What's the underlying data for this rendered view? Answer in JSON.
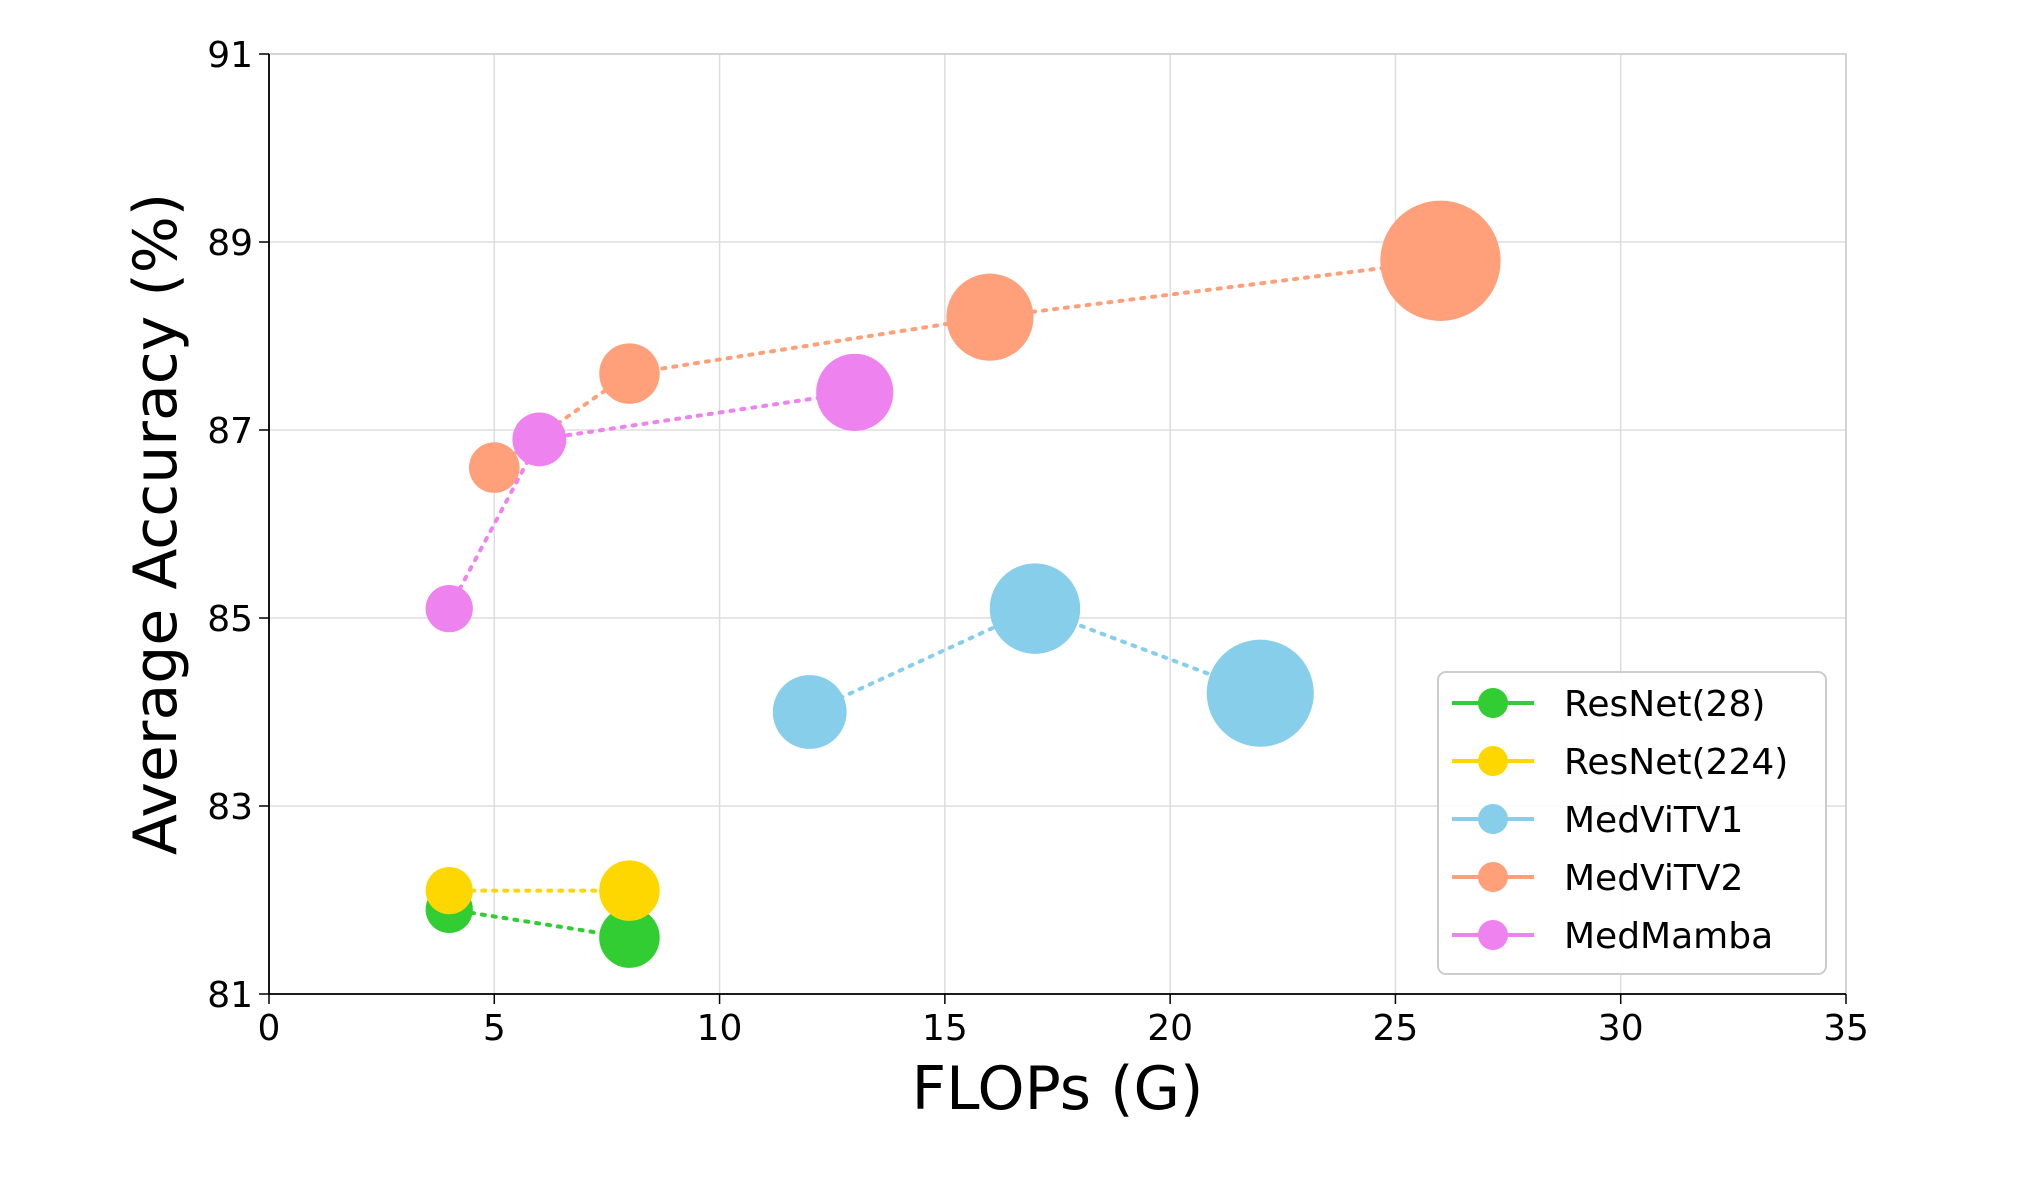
{
  "chart_data": {
    "type": "scatter",
    "xlabel": "FLOPs (G)",
    "ylabel": "Average Accuracy (%)",
    "xlim": [
      0,
      35
    ],
    "ylim": [
      81,
      91
    ],
    "xticks": [
      0,
      5,
      10,
      15,
      20,
      25,
      30,
      35
    ],
    "yticks": [
      81,
      83,
      85,
      87,
      89,
      91
    ],
    "xtick_labels": [
      "0",
      "5",
      "10",
      "15",
      "20",
      "25",
      "30",
      "35"
    ],
    "ytick_labels": [
      "81",
      "83",
      "85",
      "87",
      "89",
      "91"
    ],
    "grid": true,
    "legend_position": "bottom-right",
    "connector_style": "dotted",
    "series": [
      {
        "name": "ResNet(28)",
        "color": "#32CD32",
        "x": [
          4,
          8
        ],
        "y": [
          81.9,
          81.6
        ]
      },
      {
        "name": "ResNet(224)",
        "color": "#FFD700",
        "x": [
          4,
          8
        ],
        "y": [
          82.1,
          82.1
        ]
      },
      {
        "name": "MedViTV1",
        "color": "#87CEEB",
        "x": [
          12,
          17,
          22
        ],
        "y": [
          84.0,
          85.1,
          84.2
        ]
      },
      {
        "name": "MedViTV2",
        "color": "#FFA07A",
        "x": [
          5,
          8,
          16,
          26
        ],
        "y": [
          86.6,
          87.6,
          88.2,
          88.8
        ]
      },
      {
        "name": "MedMamba",
        "color": "#EE82EE",
        "x": [
          4,
          6,
          13
        ],
        "y": [
          85.1,
          86.9,
          87.4
        ]
      }
    ]
  }
}
